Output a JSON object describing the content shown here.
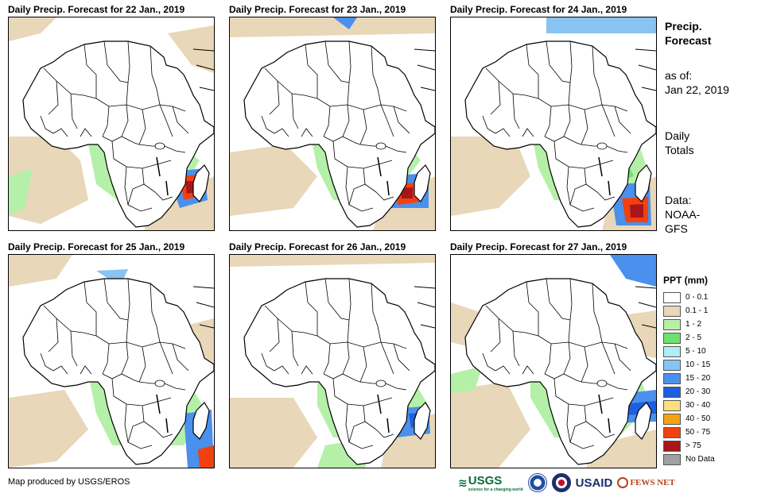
{
  "panels": [
    {
      "title": "Daily Precip. Forecast for 22 Jan., 2019"
    },
    {
      "title": "Daily Precip. Forecast for 23 Jan., 2019"
    },
    {
      "title": "Daily Precip. Forecast for 24 Jan., 2019"
    },
    {
      "title": "Daily Precip. Forecast for 25 Jan., 2019"
    },
    {
      "title": "Daily Precip. Forecast for 26 Jan., 2019"
    },
    {
      "title": "Daily Precip. Forecast for 27 Jan., 2019"
    }
  ],
  "side": {
    "title_line1": "Precip.",
    "title_line2": "Forecast",
    "asof_line1": "as of:",
    "asof_line2": "Jan 22, 2019",
    "totals_line1": "Daily",
    "totals_line2": "Totals",
    "data_line1": "Data:",
    "data_line2": "NOAA-",
    "data_line3": "GFS"
  },
  "legend": {
    "title": "PPT (mm)",
    "items": [
      {
        "label": "0 - 0.1",
        "color": "#ffffff"
      },
      {
        "label": "0.1 - 1",
        "color": "#e8d7b8"
      },
      {
        "label": "1 - 2",
        "color": "#b5f0a8"
      },
      {
        "label": "2 - 5",
        "color": "#6ee26e"
      },
      {
        "label": "5 - 10",
        "color": "#aeeef7"
      },
      {
        "label": "10 - 15",
        "color": "#88c3f2"
      },
      {
        "label": "15 - 20",
        "color": "#4a90ec"
      },
      {
        "label": "20 - 30",
        "color": "#1e5fe0"
      },
      {
        "label": "30 - 40",
        "color": "#fbe07d"
      },
      {
        "label": "40 - 50",
        "color": "#f7a311"
      },
      {
        "label": "50 - 75",
        "color": "#f2410e"
      },
      {
        "label": "> 75",
        "color": "#a8151a"
      },
      {
        "label": "No Data",
        "color": "#a0a0a0"
      }
    ]
  },
  "credit": "Map produced by USGS/EROS",
  "logos": {
    "usgs": "USGS",
    "usgs_tagline": "science for a changing world",
    "usaid": "USAID",
    "fews": "FEWS NET"
  }
}
